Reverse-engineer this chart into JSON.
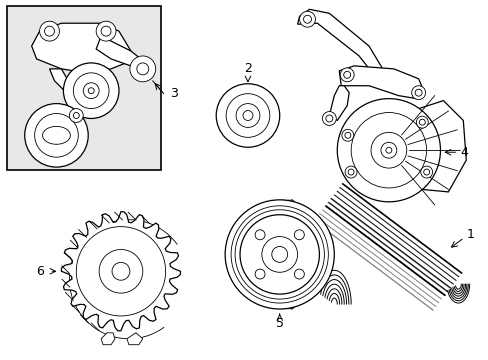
{
  "background_color": "#ffffff",
  "line_color": "#000000",
  "fig_width": 4.89,
  "fig_height": 3.6,
  "dpi": 100,
  "font_size": 9,
  "inset_bg": "#e8e8e8",
  "lw_thin": 0.6,
  "lw_med": 0.9,
  "lw_thick": 1.2
}
